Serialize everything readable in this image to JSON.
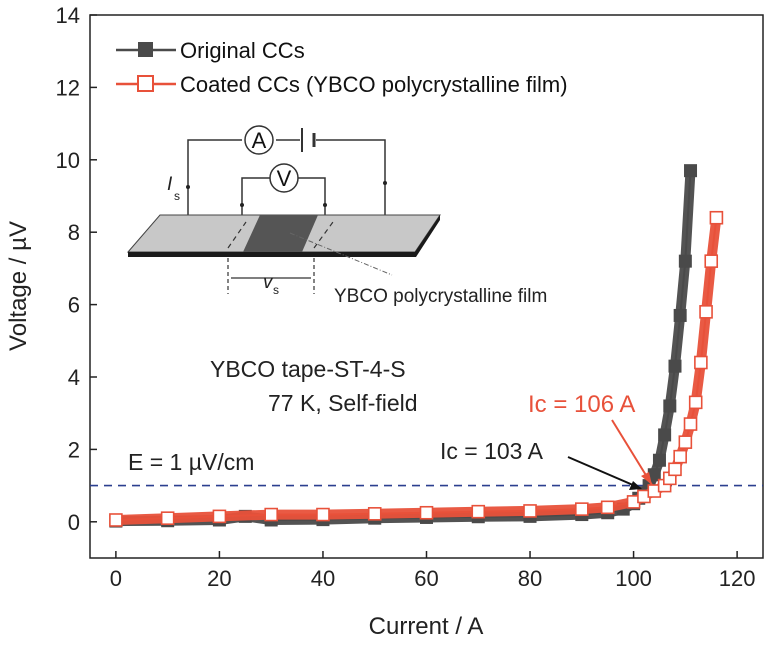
{
  "chart_data": {
    "type": "line",
    "xlabel": "Current / A",
    "ylabel": "Voltage / µV",
    "xlim": [
      -5,
      125
    ],
    "ylim": [
      -1,
      14
    ],
    "xticks": [
      "0",
      "20",
      "40",
      "60",
      "80",
      "100",
      "120"
    ],
    "yticks": [
      "0",
      "2",
      "4",
      "6",
      "8",
      "10",
      "12",
      "14"
    ],
    "grid": false,
    "legend_position": "top-left",
    "series": [
      {
        "name": "Original CCs",
        "color": "#4a4a4a",
        "marker": "filled-square",
        "x": [
          0,
          10,
          20,
          25,
          30,
          40,
          50,
          60,
          70,
          80,
          90,
          95,
          98,
          100,
          101,
          102,
          103,
          104,
          105,
          106,
          107,
          108,
          109,
          110,
          111
        ],
        "y": [
          0.02,
          0.03,
          0.05,
          0.15,
          0.05,
          0.06,
          0.1,
          0.12,
          0.14,
          0.15,
          0.2,
          0.25,
          0.35,
          0.5,
          0.65,
          0.8,
          1.0,
          1.3,
          1.7,
          2.4,
          3.2,
          4.3,
          5.7,
          7.2,
          9.7
        ]
      },
      {
        "name": "Coated CCs (YBCO polycrystalline film)",
        "color": "#e8513a",
        "marker": "open-square",
        "x": [
          0,
          10,
          20,
          30,
          40,
          50,
          60,
          70,
          80,
          90,
          95,
          100,
          102,
          104,
          106,
          107,
          108,
          109,
          110,
          111,
          112,
          113,
          114,
          115,
          116
        ],
        "y": [
          0.05,
          0.1,
          0.15,
          0.2,
          0.2,
          0.22,
          0.25,
          0.28,
          0.3,
          0.35,
          0.4,
          0.55,
          0.7,
          0.85,
          1.0,
          1.2,
          1.45,
          1.8,
          2.2,
          2.7,
          3.3,
          4.4,
          5.8,
          7.2,
          8.4
        ]
      }
    ],
    "criterion_line": {
      "y": 1,
      "color": "#2b3f8f"
    },
    "annotations": {
      "criterion": "E = 1 µV/cm",
      "sample": "YBCO tape-ST-4-S",
      "conditions": "77 K, Self-field",
      "ic_original": "Ic = 103 A",
      "ic_coated": "Ic = 106 A",
      "inset_film_label": "YBCO polycrystalline film",
      "inset_ammeter": "A",
      "inset_voltmeter": "V",
      "inset_current_symbol": "I",
      "inset_voltage_symbol": "v",
      "inset_subscript": "s"
    }
  }
}
